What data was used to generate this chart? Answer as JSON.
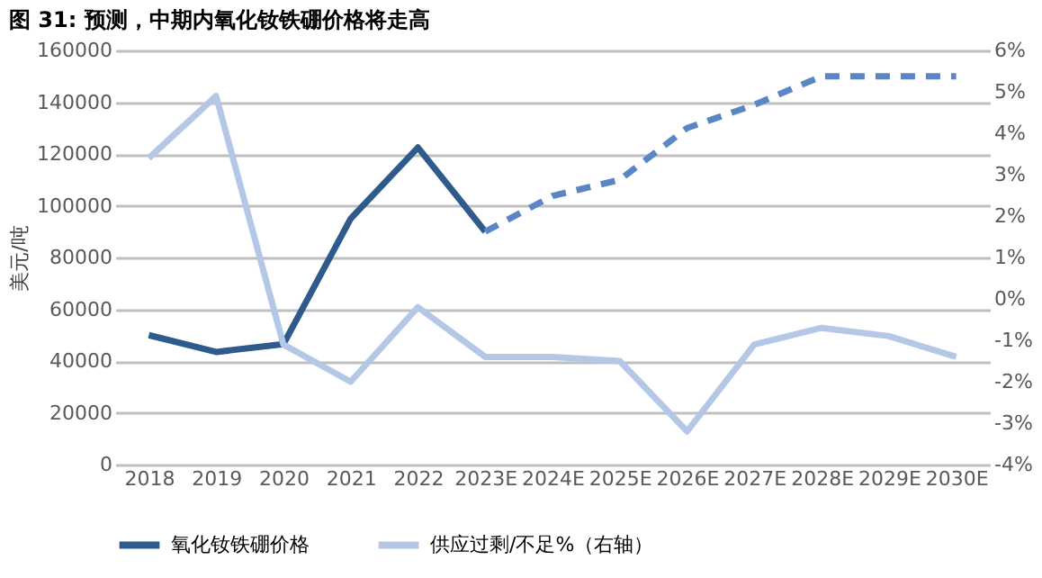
{
  "chart_data": {
    "type": "line",
    "title": "图 31:  预测，中期内氧化钕铁硼价格将走高",
    "ylabel": "美元/吨",
    "categories": [
      "2018",
      "2019",
      "2020",
      "2021",
      "2022",
      "2023E",
      "2024E",
      "2025E",
      "2026E",
      "2027E",
      "2028E",
      "2029E",
      "2030E"
    ],
    "series": [
      {
        "name": "氧化钕铁硼价格",
        "color": "#2e5a8c",
        "line_style": "solid",
        "values": [
          50000,
          43500,
          46500,
          95000,
          122500,
          90000,
          null,
          null,
          null,
          null,
          null,
          null,
          null
        ]
      },
      {
        "color": "#5b86c5",
        "line_style": "dashed",
        "values": [
          null,
          null,
          null,
          null,
          null,
          90000,
          103800,
          110000,
          130000,
          139000,
          150000,
          150000,
          150000
        ]
      },
      {
        "name": "供应过剩/不足%（右轴）",
        "color": "#b4c7e7",
        "line_style": "solid",
        "axis": "y2",
        "values": [
          3.4,
          4.9,
          -1.1,
          -2.0,
          -0.2,
          -1.4,
          -1.4,
          -1.5,
          -3.2,
          -1.1,
          -0.7,
          -0.9,
          -1.4
        ]
      }
    ],
    "ylim": [
      0,
      160000
    ],
    "yticks": [
      0,
      20000,
      40000,
      60000,
      80000,
      100000,
      120000,
      140000,
      160000
    ],
    "y2lim": [
      -4,
      6
    ],
    "y2ticks": [
      {
        "value": -4,
        "label": "-4%"
      },
      {
        "value": -3,
        "label": "-3%"
      },
      {
        "value": -2,
        "label": "-2%"
      },
      {
        "value": -1,
        "label": "-1%"
      },
      {
        "value": 0,
        "label": "0%"
      },
      {
        "value": 1,
        "label": "1%"
      },
      {
        "value": 2,
        "label": "2%"
      },
      {
        "value": 3,
        "label": "3%"
      },
      {
        "value": 4,
        "label": "4%"
      },
      {
        "value": 5,
        "label": "5%"
      },
      {
        "value": 6,
        "label": "6%"
      }
    ],
    "grid": "y",
    "legend": "bottom",
    "marker": "none"
  }
}
